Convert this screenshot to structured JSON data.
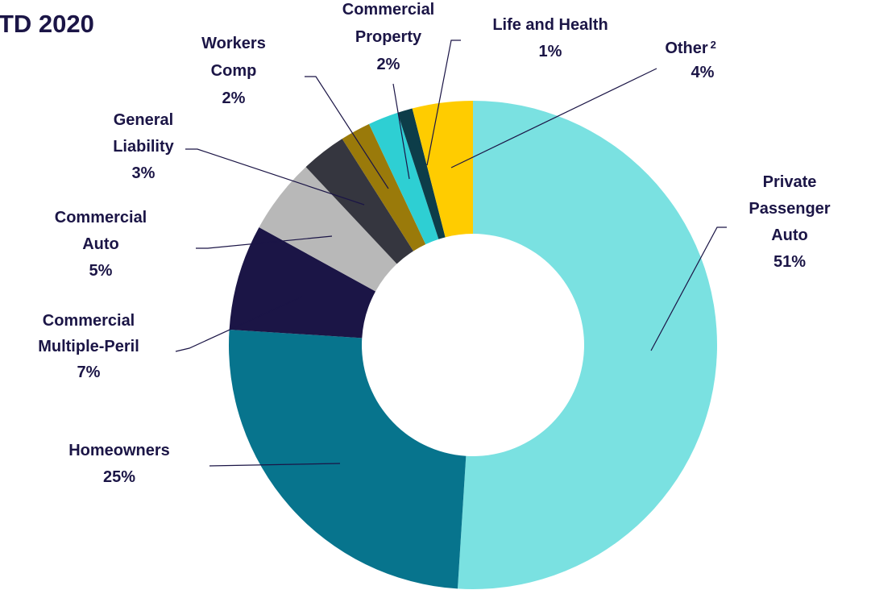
{
  "chart_data": {
    "type": "pie",
    "title": "TD 2020",
    "categories": [
      "Private\nPassenger\nAuto",
      "Homeowners",
      "Commercial\nMultiple-Peril",
      "Commercial\nAuto",
      "General\nLiability",
      "Workers\nComp",
      "Commercial\nProperty",
      "Life and Health",
      "Other"
    ],
    "values": [
      51,
      25,
      7,
      5,
      3,
      2,
      2,
      1,
      4
    ],
    "value_labels": [
      "51%",
      "25%",
      "7%",
      "5%",
      "3%",
      "2%",
      "2%",
      "1%",
      "4%"
    ],
    "colors": [
      "#7ae1e1",
      "#07748d",
      "#1b1546",
      "#b8b8b8",
      "#35363f",
      "#9a7a0a",
      "#2ecfd3",
      "#0d3d49",
      "#ffcc00"
    ],
    "annotations": [
      {
        "text": "2"
      }
    ],
    "donut": true
  }
}
